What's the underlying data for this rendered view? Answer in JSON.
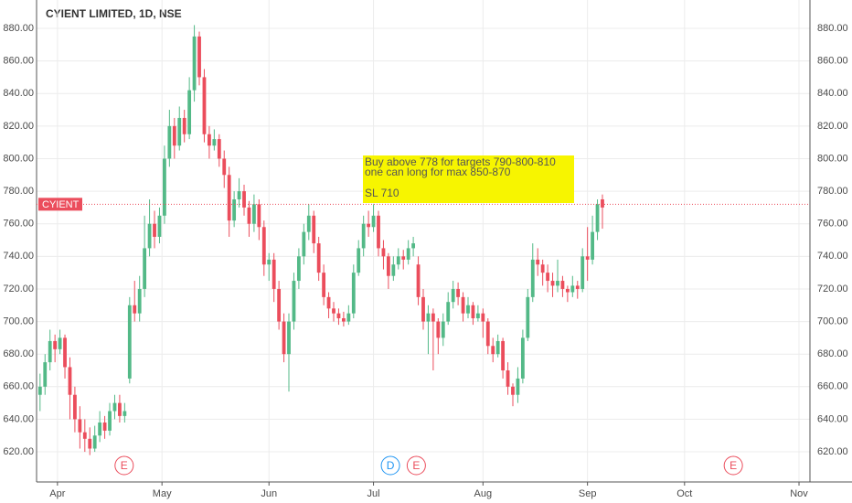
{
  "chart_data": {
    "type": "candlestick",
    "title": "CYIENT LIMITED, 1D, NSE",
    "up_color": "#53b987",
    "down_color": "#eb4d5c",
    "grid": true,
    "ylim": [
      601.5,
      897.4
    ],
    "yticks": [
      {
        "value": 620,
        "label": "620.00"
      },
      {
        "value": 640,
        "label": "640.00"
      },
      {
        "value": 660,
        "label": "660.00"
      },
      {
        "value": 680,
        "label": "680.00"
      },
      {
        "value": 700,
        "label": "700.00"
      },
      {
        "value": 720,
        "label": "720.00"
      },
      {
        "value": 740,
        "label": "740.00"
      },
      {
        "value": 760,
        "label": "760.00"
      },
      {
        "value": 780,
        "label": "780.00"
      },
      {
        "value": 800,
        "label": "800.00"
      },
      {
        "value": 820,
        "label": "820.00"
      },
      {
        "value": 840,
        "label": "840.00"
      },
      {
        "value": 860,
        "label": "860.00"
      },
      {
        "value": 880,
        "label": "880.00"
      }
    ],
    "xlim": [
      -0.7,
      154.7
    ],
    "xticks": [
      {
        "value": 3.5,
        "label": "Apr"
      },
      {
        "value": 24.5,
        "label": "May"
      },
      {
        "value": 46,
        "label": "Jun"
      },
      {
        "value": 67,
        "label": "Jul"
      },
      {
        "value": 89,
        "label": "Aug"
      },
      {
        "value": 110,
        "label": "Sep"
      },
      {
        "value": 129.5,
        "label": "Oct"
      },
      {
        "value": 152.5,
        "label": "Nov"
      }
    ],
    "candles": [
      [
        655,
        668,
        645,
        660
      ],
      [
        660,
        680,
        655,
        675
      ],
      [
        675,
        695,
        670,
        688
      ],
      [
        688,
        692,
        675,
        683
      ],
      [
        683,
        695,
        680,
        690
      ],
      [
        690,
        692,
        665,
        672
      ],
      [
        672,
        678,
        640,
        655
      ],
      [
        655,
        660,
        632,
        640
      ],
      [
        640,
        648,
        622,
        632
      ],
      [
        632,
        640,
        620,
        628
      ],
      [
        628,
        635,
        618,
        622
      ],
      [
        622,
        636,
        620,
        630
      ],
      [
        630,
        645,
        626,
        638
      ],
      [
        638,
        642,
        628,
        633
      ],
      [
        633,
        650,
        630,
        645
      ],
      [
        645,
        655,
        640,
        650
      ],
      [
        650,
        655,
        638,
        642
      ],
      [
        642,
        650,
        638,
        645
      ],
      [
        665,
        715,
        662,
        710
      ],
      [
        710,
        725,
        700,
        705
      ],
      [
        705,
        728,
        700,
        720
      ],
      [
        720,
        765,
        715,
        745
      ],
      [
        745,
        775,
        740,
        760
      ],
      [
        760,
        768,
        745,
        752
      ],
      [
        752,
        770,
        748,
        765
      ],
      [
        765,
        808,
        760,
        800
      ],
      [
        800,
        830,
        795,
        820
      ],
      [
        820,
        825,
        800,
        808
      ],
      [
        808,
        832,
        805,
        825
      ],
      [
        825,
        830,
        810,
        815
      ],
      [
        815,
        850,
        812,
        842
      ],
      [
        842,
        882,
        835,
        875
      ],
      [
        875,
        878,
        845,
        850
      ],
      [
        850,
        855,
        810,
        815
      ],
      [
        815,
        820,
        800,
        808
      ],
      [
        808,
        818,
        805,
        812
      ],
      [
        812,
        815,
        795,
        800
      ],
      [
        800,
        805,
        782,
        790
      ],
      [
        790,
        795,
        752,
        762
      ],
      [
        762,
        780,
        758,
        775
      ],
      [
        775,
        788,
        770,
        780
      ],
      [
        780,
        784,
        765,
        770
      ],
      [
        770,
        774,
        752,
        760
      ],
      [
        760,
        778,
        755,
        772
      ],
      [
        772,
        775,
        750,
        758
      ],
      [
        758,
        762,
        728,
        735
      ],
      [
        735,
        742,
        725,
        738
      ],
      [
        738,
        742,
        712,
        720
      ],
      [
        720,
        725,
        695,
        700
      ],
      [
        700,
        705,
        675,
        680
      ],
      [
        680,
        705,
        657,
        700
      ],
      [
        700,
        730,
        695,
        725
      ],
      [
        725,
        745,
        720,
        740
      ],
      [
        740,
        760,
        735,
        755
      ],
      [
        755,
        772,
        750,
        765
      ],
      [
        765,
        768,
        742,
        748
      ],
      [
        748,
        752,
        725,
        730
      ],
      [
        730,
        735,
        710,
        715
      ],
      [
        715,
        718,
        702,
        708
      ],
      [
        708,
        712,
        700,
        705
      ],
      [
        705,
        708,
        698,
        702
      ],
      [
        702,
        706,
        697,
        700
      ],
      [
        700,
        710,
        698,
        705
      ],
      [
        705,
        735,
        702,
        730
      ],
      [
        730,
        750,
        728,
        745
      ],
      [
        745,
        765,
        740,
        760
      ],
      [
        760,
        768,
        752,
        758
      ],
      [
        758,
        772,
        755,
        765
      ],
      [
        765,
        768,
        740,
        745
      ],
      [
        745,
        750,
        732,
        740
      ],
      [
        740,
        742,
        720,
        728
      ],
      [
        728,
        740,
        725,
        735
      ],
      [
        735,
        745,
        732,
        740
      ],
      [
        740,
        744,
        732,
        738
      ],
      [
        738,
        750,
        735,
        745
      ],
      [
        745,
        752,
        740,
        748
      ],
      [
        735,
        740,
        710,
        715
      ],
      [
        715,
        720,
        695,
        700
      ],
      [
        700,
        710,
        680,
        705
      ],
      [
        705,
        708,
        670,
        700
      ],
      [
        700,
        702,
        680,
        690
      ],
      [
        690,
        705,
        685,
        700
      ],
      [
        700,
        718,
        698,
        712
      ],
      [
        712,
        725,
        708,
        720
      ],
      [
        720,
        724,
        710,
        715
      ],
      [
        715,
        718,
        700,
        705
      ],
      [
        705,
        715,
        702,
        710
      ],
      [
        710,
        712,
        698,
        702
      ],
      [
        702,
        710,
        700,
        705
      ],
      [
        705,
        708,
        690,
        700
      ],
      [
        700,
        702,
        680,
        685
      ],
      [
        685,
        690,
        675,
        680
      ],
      [
        680,
        692,
        678,
        688
      ],
      [
        688,
        690,
        665,
        670
      ],
      [
        670,
        675,
        655,
        660
      ],
      [
        660,
        662,
        648,
        655
      ],
      [
        655,
        672,
        650,
        665
      ],
      [
        665,
        695,
        662,
        690
      ],
      [
        690,
        720,
        688,
        715
      ],
      [
        715,
        748,
        712,
        738
      ],
      [
        738,
        745,
        728,
        735
      ],
      [
        735,
        738,
        722,
        730
      ],
      [
        730,
        735,
        718,
        725
      ],
      [
        725,
        730,
        715,
        722
      ],
      [
        722,
        738,
        718,
        725
      ],
      [
        725,
        728,
        715,
        720
      ],
      [
        720,
        722,
        712,
        718
      ],
      [
        718,
        728,
        715,
        722
      ],
      [
        722,
        725,
        714,
        720
      ],
      [
        720,
        745,
        718,
        740
      ],
      [
        740,
        758,
        725,
        738
      ],
      [
        738,
        765,
        735,
        755
      ],
      [
        755,
        775,
        750,
        772
      ],
      [
        775,
        778,
        757,
        770
      ]
    ],
    "price_line": {
      "label": "CYIENT",
      "value": 772,
      "color": "#eb4d5c"
    },
    "annotation": [
      "Buy above 778 for targets 790-800-810",
      "one can long for max 850-870",
      "SL 710"
    ],
    "events": [
      {
        "label": "E",
        "x": 16.9,
        "color": "#eb4d5c"
      },
      {
        "label": "D",
        "x": 70.4,
        "color": "#2196f3"
      },
      {
        "label": "E",
        "x": 75.6,
        "color": "#eb4d5c"
      },
      {
        "label": "E",
        "x": 139.3,
        "color": "#eb4d5c"
      }
    ]
  }
}
